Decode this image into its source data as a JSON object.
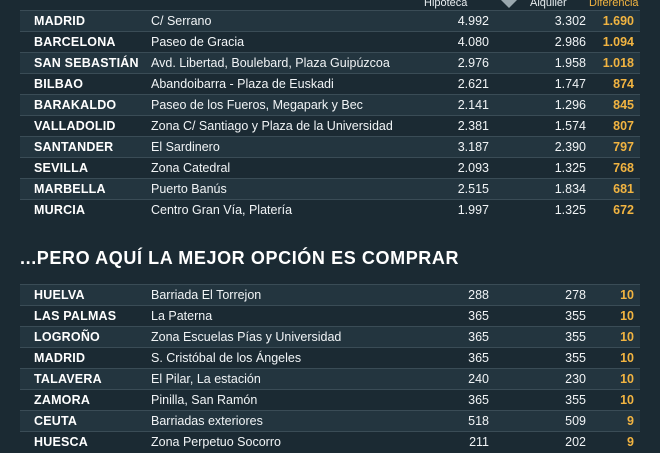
{
  "header": {
    "hipoteca": "Hipoteca",
    "alquiler": "Alquiler",
    "diferencia": "Diferencia"
  },
  "section2_title": "...PERO AQUÍ LA MEJOR OPCIÓN ES COMPRAR",
  "table1": [
    {
      "city": "MADRID",
      "zone": "C/ Serrano",
      "hipoteca": "4.992",
      "alquiler": "3.302",
      "diferencia": "1.690"
    },
    {
      "city": "BARCELONA",
      "zone": "Paseo de Gracia",
      "hipoteca": "4.080",
      "alquiler": "2.986",
      "diferencia": "1.094"
    },
    {
      "city": "SAN SEBASTIÁN",
      "zone": "Avd. Libertad,  Boulebard, Plaza Guipúzcoa",
      "hipoteca": "2.976",
      "alquiler": "1.958",
      "diferencia": "1.018"
    },
    {
      "city": "BILBAO",
      "zone": "Abandoibarra - Plaza de Euskadi",
      "hipoteca": "2.621",
      "alquiler": "1.747",
      "diferencia": "874"
    },
    {
      "city": "BARAKALDO",
      "zone": "Paseo de los Fueros, Megapark y Bec",
      "hipoteca": "2.141",
      "alquiler": "1.296",
      "diferencia": "845"
    },
    {
      "city": "VALLADOLID",
      "zone": "Zona C/ Santiago y Plaza de la Universidad",
      "hipoteca": "2.381",
      "alquiler": "1.574",
      "diferencia": "807"
    },
    {
      "city": "SANTANDER",
      "zone": "El Sardinero",
      "hipoteca": "3.187",
      "alquiler": "2.390",
      "diferencia": "797"
    },
    {
      "city": "SEVILLA",
      "zone": "Zona Catedral",
      "hipoteca": "2.093",
      "alquiler": "1.325",
      "diferencia": "768"
    },
    {
      "city": "MARBELLA",
      "zone": "Puerto Banús",
      "hipoteca": "2.515",
      "alquiler": "1.834",
      "diferencia": "681"
    },
    {
      "city": "MURCIA",
      "zone": "Centro Gran Vía, Platería",
      "hipoteca": "1.997",
      "alquiler": "1.325",
      "diferencia": "672"
    }
  ],
  "table2": [
    {
      "city": "HUELVA",
      "zone": "Barriada El Torrejon",
      "hipoteca": "288",
      "alquiler": "278",
      "diferencia": "10"
    },
    {
      "city": "LAS PALMAS",
      "zone": "La Paterna",
      "hipoteca": "365",
      "alquiler": "355",
      "diferencia": "10"
    },
    {
      "city": "LOGROÑO",
      "zone": "Zona Escuelas Pías y Universidad",
      "hipoteca": "365",
      "alquiler": "355",
      "diferencia": "10"
    },
    {
      "city": "MADRID",
      "zone": "S. Cristóbal de los Ángeles",
      "hipoteca": "365",
      "alquiler": "355",
      "diferencia": "10"
    },
    {
      "city": "TALAVERA",
      "zone": "El Pilar, La estación",
      "hipoteca": "240",
      "alquiler": "230",
      "diferencia": "10"
    },
    {
      "city": "ZAMORA",
      "zone": "Pinilla, San Ramón",
      "hipoteca": "365",
      "alquiler": "355",
      "diferencia": "10"
    },
    {
      "city": "CEUTA",
      "zone": "Barriadas exteriores",
      "hipoteca": "518",
      "alquiler": "509",
      "diferencia": "9"
    },
    {
      "city": "HUESCA",
      "zone": "Zona Perpetuo Socorro",
      "hipoteca": "211",
      "alquiler": "202",
      "diferencia": "9"
    }
  ]
}
